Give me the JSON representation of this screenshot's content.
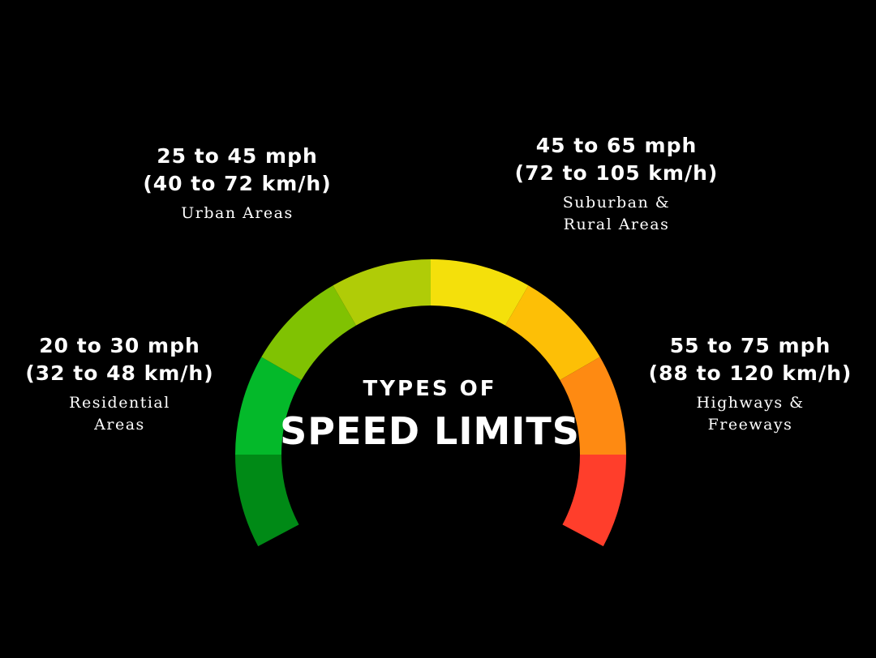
{
  "title": {
    "line1": "TYPES OF",
    "line2": "SPEED LIMITS"
  },
  "gauge": {
    "segments": [
      {
        "color": "#008a16"
      },
      {
        "color": "#04b92a"
      },
      {
        "color": "#80c202"
      },
      {
        "color": "#b0cc07"
      },
      {
        "color": "#f4e00b"
      },
      {
        "color": "#fdbf06"
      },
      {
        "color": "#fe8a12"
      },
      {
        "color": "#ff3e2b"
      }
    ]
  },
  "categories": [
    {
      "speed_mph": "20 to 30 mph",
      "speed_kmh": "(32 to 48 km/h)",
      "area_line1": "Residential",
      "area_line2": "Areas"
    },
    {
      "speed_mph": "25 to 45 mph",
      "speed_kmh": "(40 to 72 km/h)",
      "area_line1": "Urban Areas",
      "area_line2": ""
    },
    {
      "speed_mph": "45 to 65 mph",
      "speed_kmh": "(72 to 105 km/h)",
      "area_line1": "Suburban &",
      "area_line2": "Rural Areas"
    },
    {
      "speed_mph": "55 to 75 mph",
      "speed_kmh": "(88 to 120 km/h)",
      "area_line1": "Highways &",
      "area_line2": "Freeways"
    }
  ]
}
